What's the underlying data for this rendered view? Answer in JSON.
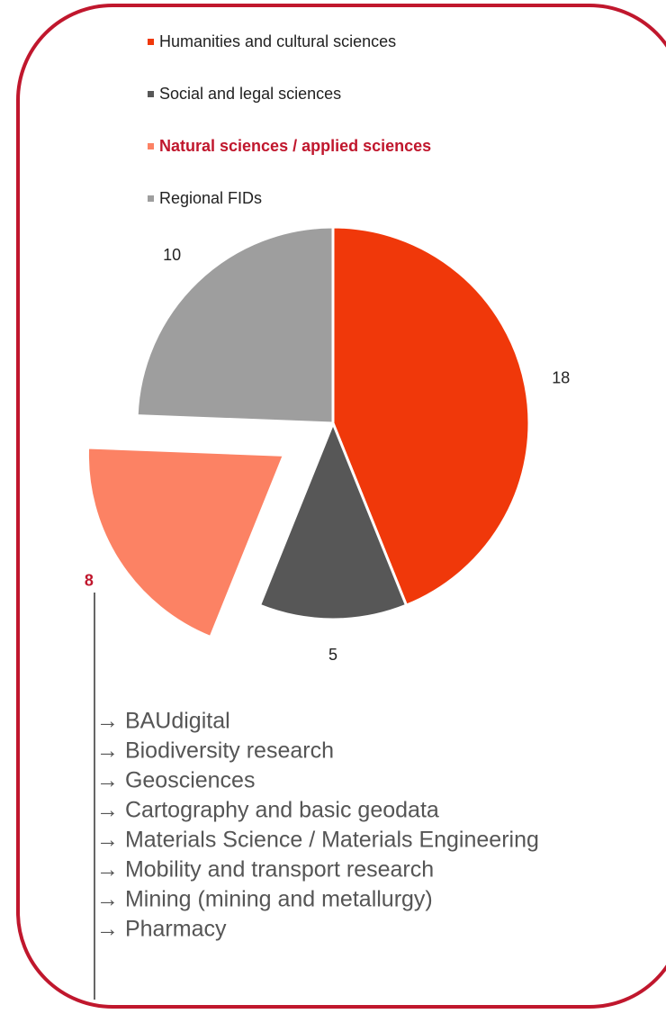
{
  "chart_data": {
    "type": "pie",
    "categories": [
      "Humanities and cultural sciences",
      "Social and legal sciences",
      "Natural sciences / applied sciences",
      "Regional FIDs"
    ],
    "values": [
      18,
      5,
      8,
      10
    ],
    "colors": [
      "#f0380a",
      "#575757",
      "#fc8264",
      "#9e9e9e"
    ],
    "start_angle": 0,
    "direction": "clockwise",
    "exploded": 2,
    "highlight_color": "#c0172d",
    "legend": "top",
    "annotations": [
      "→ BAUdigital",
      "→ Biodiversity research",
      "→ Geosciences",
      "→ Cartography and basic geodata",
      "→ Materials Science / Materials Engineering",
      "→ Mobility and transport research",
      "→ Mining (mining and metallurgy)",
      "→ Pharmacy"
    ]
  }
}
